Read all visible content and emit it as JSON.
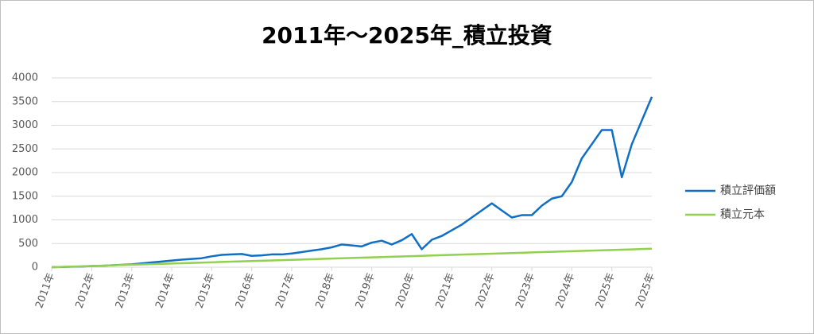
{
  "chart_data": {
    "type": "line",
    "title": "2011年～2025年_積立投資",
    "categories": [
      "2011年",
      null,
      null,
      null,
      "2012年",
      null,
      null,
      null,
      "2013年",
      null,
      null,
      null,
      "2014年",
      null,
      null,
      null,
      "2015年",
      null,
      null,
      null,
      "2016年",
      null,
      null,
      null,
      "2017年",
      null,
      null,
      null,
      "2018年",
      null,
      null,
      null,
      "2019年",
      null,
      null,
      null,
      "2020年",
      null,
      null,
      null,
      "2021年",
      null,
      null,
      null,
      "2022年",
      null,
      null,
      null,
      "2023年",
      null,
      null,
      null,
      "2024年",
      null,
      null,
      null,
      "2025年",
      null,
      null,
      null,
      "2025年"
    ],
    "series": [
      {
        "name": "積立評価額",
        "color": "#0f6fc6",
        "values": [
          0,
          5,
          10,
          15,
          25,
          30,
          40,
          50,
          60,
          80,
          100,
          120,
          140,
          160,
          175,
          190,
          230,
          260,
          270,
          280,
          240,
          250,
          270,
          270,
          290,
          320,
          350,
          380,
          420,
          480,
          460,
          440,
          520,
          560,
          480,
          570,
          700,
          380,
          580,
          660,
          780,
          900,
          1050,
          1200,
          1350,
          1200,
          1050,
          1100,
          1100,
          1300,
          1450,
          1500,
          1800,
          2300,
          2600,
          2900,
          2900,
          1900,
          2600,
          3100,
          3600
        ]
      },
      {
        "name": "積立元本",
        "color": "#92d050",
        "values": [
          0,
          6.5,
          13,
          19.5,
          26,
          32.5,
          39,
          45.5,
          52,
          58.5,
          65,
          71.5,
          78,
          84.5,
          91,
          97.5,
          104,
          110.5,
          117,
          123.5,
          130,
          136.5,
          143,
          149.5,
          156,
          162.5,
          169,
          175.5,
          182,
          188.5,
          195,
          201.5,
          208,
          214.5,
          221,
          227.5,
          234,
          240.5,
          247,
          253.5,
          260,
          266.5,
          273,
          279.5,
          286,
          292.5,
          299,
          305.5,
          312,
          318.5,
          325,
          331.5,
          338,
          344.5,
          351,
          357.5,
          364,
          370.5,
          377,
          383.5,
          390
        ]
      }
    ],
    "ylim": [
      0,
      4000
    ],
    "yticks": [
      0,
      500,
      1000,
      1500,
      2000,
      2500,
      3000,
      3500,
      4000
    ],
    "grid": true,
    "legend": "right"
  }
}
